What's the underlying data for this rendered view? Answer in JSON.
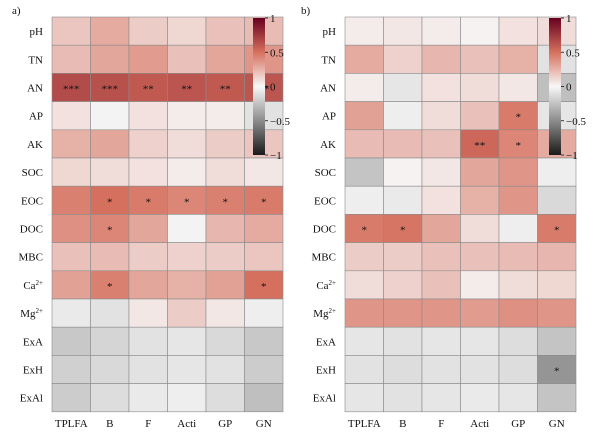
{
  "chart_data": [
    {
      "type": "heatmap",
      "panel_label": "a)",
      "rows": [
        "pH",
        "TN",
        "AN",
        "AP",
        "AK",
        "SOC",
        "EOC",
        "DOC",
        "MBC",
        "Ca2+",
        "Mg2+",
        "ExA",
        "ExH",
        "ExAl"
      ],
      "columns": [
        "TPLFA",
        "B",
        "F",
        "Acti",
        "GP",
        "GN"
      ],
      "values": [
        [
          0.18,
          0.28,
          0.16,
          0.12,
          0.2,
          0.22
        ],
        [
          0.22,
          0.3,
          0.34,
          0.2,
          0.3,
          0.36
        ],
        [
          0.66,
          0.64,
          0.6,
          0.62,
          0.6,
          0.62
        ],
        [
          0.08,
          -0.02,
          0.08,
          0.04,
          0.04,
          -0.1
        ],
        [
          0.26,
          0.3,
          0.14,
          0.1,
          0.16,
          0.18
        ],
        [
          0.12,
          0.1,
          0.08,
          0.04,
          0.1,
          0.06
        ],
        [
          0.44,
          0.5,
          0.46,
          0.42,
          0.44,
          0.46
        ],
        [
          0.38,
          0.42,
          0.3,
          -0.02,
          0.24,
          0.28
        ],
        [
          0.2,
          0.22,
          0.16,
          0.14,
          0.16,
          0.18
        ],
        [
          0.32,
          0.44,
          0.3,
          0.26,
          0.32,
          0.5
        ],
        [
          -0.06,
          -0.1,
          0.06,
          0.16,
          0.06,
          -0.04
        ],
        [
          -0.22,
          -0.16,
          -0.1,
          -0.08,
          -0.14,
          -0.22
        ],
        [
          -0.18,
          -0.14,
          -0.1,
          -0.08,
          -0.1,
          -0.2
        ],
        [
          -0.2,
          -0.12,
          -0.06,
          -0.04,
          -0.12,
          -0.26
        ]
      ],
      "significance": [
        [
          "",
          "",
          "",
          "",
          "",
          ""
        ],
        [
          "",
          "",
          "",
          "",
          "",
          ""
        ],
        [
          "***",
          "***",
          "**",
          "**",
          "**",
          "**"
        ],
        [
          "",
          "",
          "",
          "",
          "",
          ""
        ],
        [
          "",
          "",
          "",
          "",
          "",
          ""
        ],
        [
          "",
          "",
          "",
          "",
          "",
          ""
        ],
        [
          "",
          "*",
          "*",
          "*",
          "*",
          "*"
        ],
        [
          "",
          "*",
          "",
          "",
          "",
          ""
        ],
        [
          "",
          "",
          "",
          "",
          "",
          ""
        ],
        [
          "",
          "*",
          "",
          "",
          "",
          "*"
        ],
        [
          "",
          "",
          "",
          "",
          "",
          ""
        ],
        [
          "",
          "",
          "",
          "",
          "",
          ""
        ],
        [
          "",
          "",
          "",
          "",
          "",
          ""
        ],
        [
          "",
          "",
          "",
          "",
          "",
          ""
        ]
      ],
      "colorbar": {
        "min": -1,
        "max": 1,
        "ticks": [
          "1",
          "0.5",
          "0",
          "−0.5",
          "−1"
        ],
        "tick_values": [
          1,
          0.5,
          0,
          -0.5,
          -1
        ]
      }
    },
    {
      "type": "heatmap",
      "panel_label": "b)",
      "rows": [
        "pH",
        "TN",
        "AN",
        "AP",
        "AK",
        "SOC",
        "EOC",
        "DOC",
        "MBC",
        "Ca2+",
        "Mg2+",
        "ExA",
        "ExH",
        "ExAl"
      ],
      "columns": [
        "TPLFA",
        "B",
        "F",
        "Acti",
        "GP",
        "GN"
      ],
      "values": [
        [
          0.04,
          0.06,
          0.04,
          0.02,
          0.08,
          0.1
        ],
        [
          0.28,
          0.14,
          0.24,
          0.2,
          0.26,
          -0.1
        ],
        [
          0.04,
          -0.08,
          0.08,
          0.1,
          0.06,
          -0.26
        ],
        [
          0.32,
          -0.04,
          0.1,
          0.2,
          0.46,
          -0.08
        ],
        [
          0.22,
          0.22,
          0.2,
          0.54,
          0.42,
          0.28
        ],
        [
          -0.24,
          0.02,
          0.06,
          0.3,
          0.36,
          -0.04
        ],
        [
          -0.04,
          -0.06,
          0.08,
          0.26,
          0.36,
          -0.14
        ],
        [
          0.46,
          0.48,
          0.3,
          0.1,
          -0.04,
          0.46
        ],
        [
          0.16,
          0.16,
          0.2,
          0.2,
          0.22,
          0.24
        ],
        [
          0.1,
          0.14,
          0.2,
          0.04,
          0.1,
          0.12
        ],
        [
          0.36,
          0.36,
          0.36,
          0.34,
          0.38,
          0.36
        ],
        [
          -0.08,
          -0.1,
          -0.08,
          -0.08,
          -0.12,
          -0.24
        ],
        [
          -0.1,
          -0.12,
          -0.1,
          -0.1,
          -0.12,
          -0.46
        ],
        [
          -0.08,
          -0.1,
          -0.08,
          -0.06,
          -0.08,
          -0.24
        ]
      ],
      "significance": [
        [
          "",
          "",
          "",
          "",
          "",
          ""
        ],
        [
          "",
          "",
          "",
          "",
          "",
          ""
        ],
        [
          "",
          "",
          "",
          "",
          "",
          ""
        ],
        [
          "",
          "",
          "",
          "",
          "*",
          ""
        ],
        [
          "",
          "",
          "",
          "**",
          "*",
          ""
        ],
        [
          "",
          "",
          "",
          "",
          "",
          ""
        ],
        [
          "",
          "",
          "",
          "",
          "",
          ""
        ],
        [
          "*",
          "*",
          "",
          "",
          "",
          "*"
        ],
        [
          "",
          "",
          "",
          "",
          "",
          ""
        ],
        [
          "",
          "",
          "",
          "",
          "",
          ""
        ],
        [
          "",
          "",
          "",
          "",
          "",
          ""
        ],
        [
          "",
          "",
          "",
          "",
          "",
          ""
        ],
        [
          "",
          "",
          "",
          "",
          "",
          "*"
        ],
        [
          "",
          "",
          "",
          "",
          "",
          ""
        ]
      ],
      "colorbar": {
        "min": -1,
        "max": 1,
        "ticks": [
          "1",
          "0.5",
          "0",
          "−0.5",
          "−1"
        ],
        "tick_values": [
          1,
          0.5,
          0,
          -0.5,
          -1
        ]
      }
    }
  ]
}
